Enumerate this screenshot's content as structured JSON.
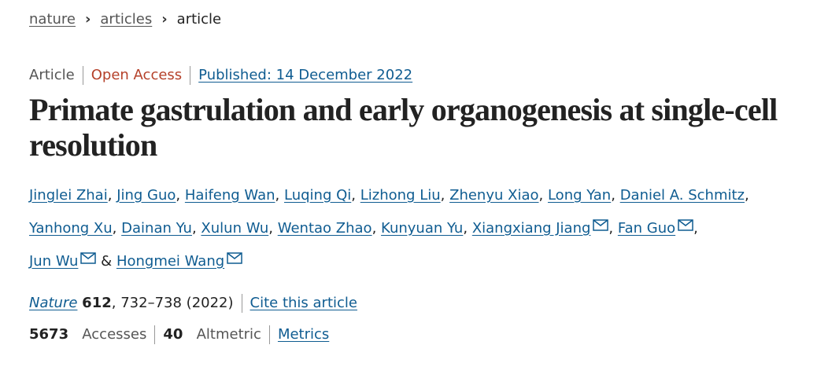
{
  "breadcrumb": [
    "nature",
    "articles",
    "article"
  ],
  "meta": {
    "type": "Article",
    "access": "Open Access",
    "published": "Published: 14 December 2022"
  },
  "title": "Primate gastrulation and early organogenesis at single-cell resolution",
  "authors": [
    {
      "name": "Jinglei Zhai",
      "email": false
    },
    {
      "name": "Jing Guo",
      "email": false
    },
    {
      "name": "Haifeng Wan",
      "email": false
    },
    {
      "name": "Luqing Qi",
      "email": false
    },
    {
      "name": "Lizhong Liu",
      "email": false
    },
    {
      "name": "Zhenyu Xiao",
      "email": false
    },
    {
      "name": "Long Yan",
      "email": false
    },
    {
      "name": "Daniel A. Schmitz",
      "email": false
    },
    {
      "name": "Yanhong Xu",
      "email": false
    },
    {
      "name": "Dainan Yu",
      "email": false
    },
    {
      "name": "Xulun Wu",
      "email": false
    },
    {
      "name": "Wentao Zhao",
      "email": false
    },
    {
      "name": "Kunyuan Yu",
      "email": false
    },
    {
      "name": "Xiangxiang Jiang",
      "email": true
    },
    {
      "name": "Fan Guo",
      "email": true
    },
    {
      "name": "Jun Wu",
      "email": true
    },
    {
      "name": "Hongmei Wang",
      "email": true
    }
  ],
  "author_separator": ",",
  "author_conjunction": "&",
  "citation": {
    "journal": "Nature",
    "volume": "612",
    "separator": ",",
    "pages": "732–738",
    "year": "(2022)",
    "cite": "Cite this article"
  },
  "metrics": {
    "accesses": "5673",
    "accesses_label": "Accesses",
    "altmetric": "40",
    "altmetric_label": "Altmetric",
    "link": "Metrics"
  }
}
